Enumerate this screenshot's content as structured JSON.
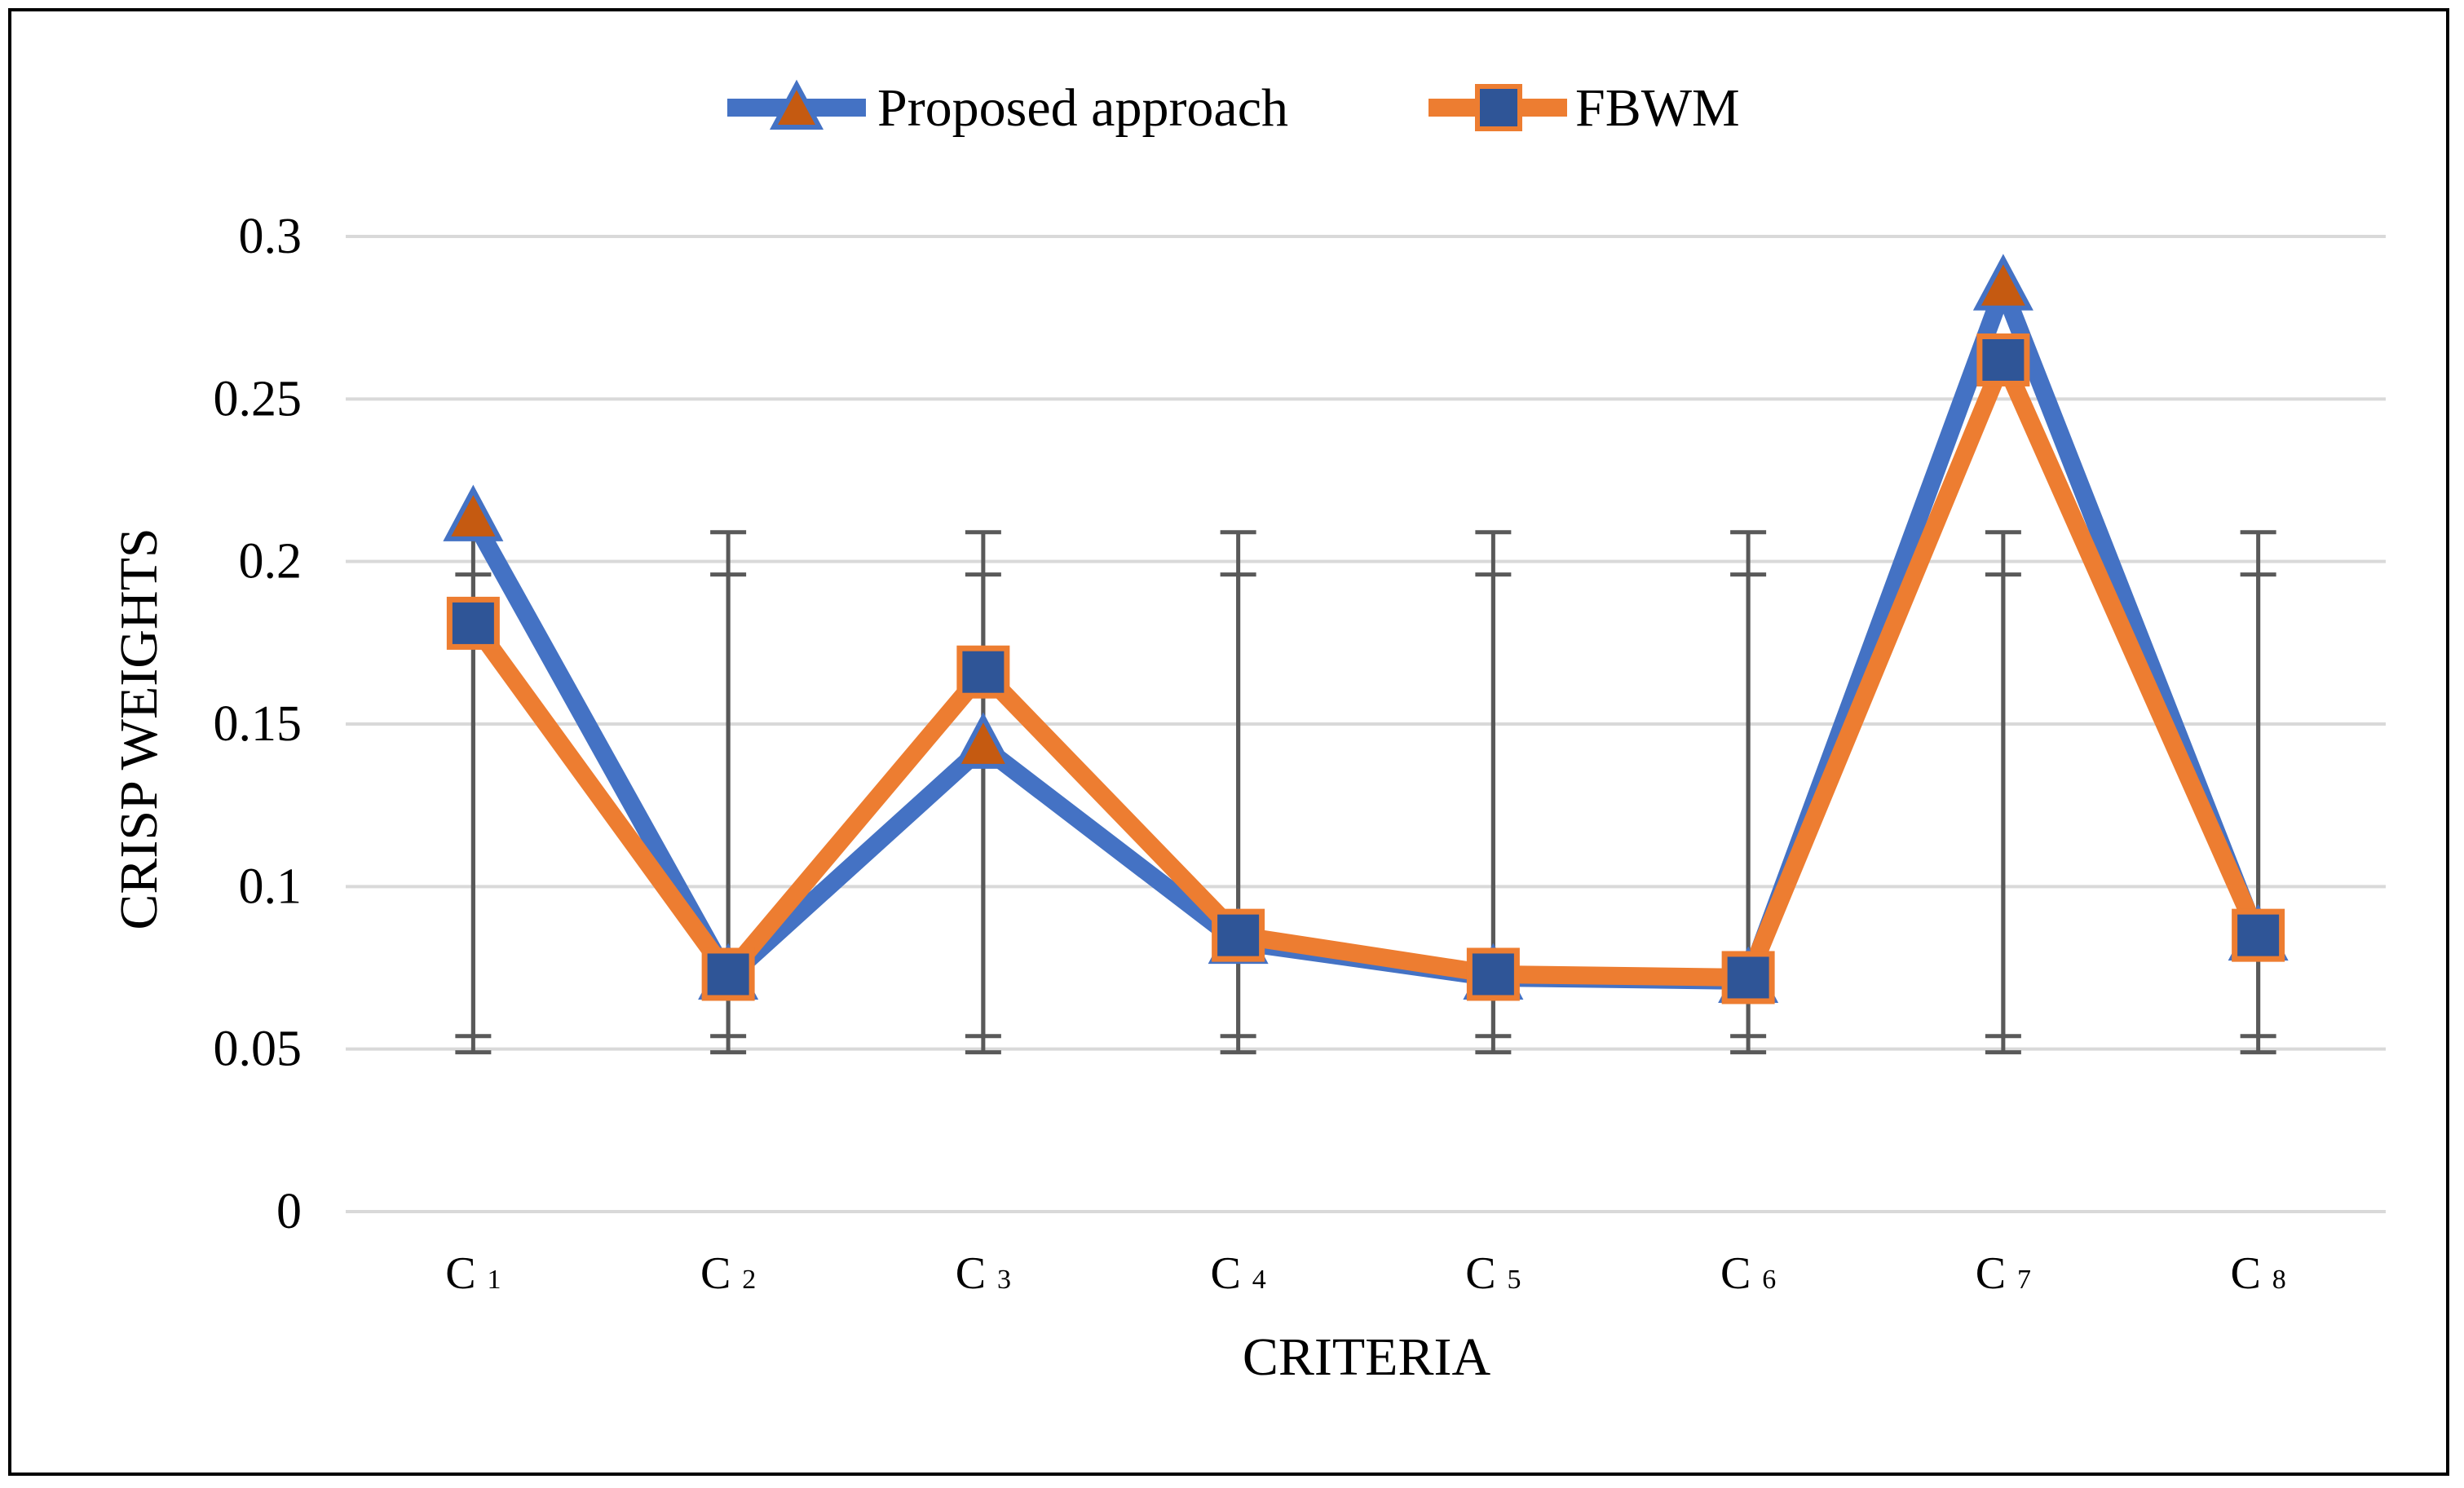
{
  "chart_data": {
    "type": "line",
    "title": "",
    "xlabel": "CRITERIA",
    "ylabel": "CRISP WEIGHTS",
    "ylim": [
      0,
      0.3
    ],
    "yticks": [
      "0",
      "0.05",
      "0.1",
      "0.15",
      "0.2",
      "0.25",
      "0.3"
    ],
    "ytick_values": [
      0,
      0.05,
      0.1,
      0.15,
      0.2,
      0.25,
      0.3
    ],
    "categories": [
      {
        "main": "C",
        "sub": "1"
      },
      {
        "main": "C",
        "sub": "2"
      },
      {
        "main": "C",
        "sub": "3"
      },
      {
        "main": "C",
        "sub": "4"
      },
      {
        "main": "C",
        "sub": "5"
      },
      {
        "main": "C",
        "sub": "6"
      },
      {
        "main": "C",
        "sub": "7"
      },
      {
        "main": "C",
        "sub": "8"
      }
    ],
    "series": [
      {
        "name": "Proposed approach",
        "values": [
          0.213,
          0.072,
          0.143,
          0.083,
          0.072,
          0.071,
          0.284,
          0.084
        ],
        "line_color": "#4472C4",
        "marker": "triangle",
        "marker_fill": "#C55A11",
        "error_low": [
          0.054,
          0.054,
          0.054,
          0.054,
          0.054,
          0.054,
          0.054,
          0.054
        ],
        "error_high": [
          0.196,
          0.196,
          0.196,
          0.196,
          0.196,
          0.196,
          0.196,
          0.196
        ]
      },
      {
        "name": "FBWM",
        "values": [
          0.181,
          0.073,
          0.166,
          0.085,
          0.073,
          0.072,
          0.262,
          0.085
        ],
        "line_color": "#ED7D31",
        "marker": "square",
        "marker_fill": "#2F5597",
        "error_low": [
          0.049,
          0.049,
          0.049,
          0.049,
          0.049,
          0.049,
          0.049,
          0.049
        ],
        "error_high": [
          0.209,
          0.209,
          0.209,
          0.209,
          0.209,
          0.209,
          0.209,
          0.209
        ]
      }
    ],
    "error_bar_color": "#595959",
    "grid": true,
    "grid_color": "#D9D9D9",
    "legend_position": "top-center"
  }
}
